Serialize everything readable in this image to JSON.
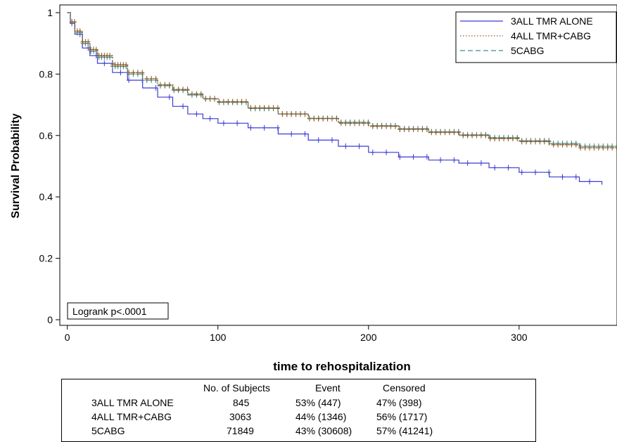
{
  "chart_data": {
    "type": "line",
    "xlabel": "time to rehospitalization",
    "ylabel": "Survival Probability",
    "xlim": [
      -5,
      365
    ],
    "ylim": [
      0,
      1
    ],
    "xticks": [
      0,
      100,
      200,
      300
    ],
    "yticks": [
      0,
      0.2,
      0.4,
      0.6,
      0.8,
      1
    ],
    "ytick_labels": [
      "0",
      "0.2",
      "0.4",
      "0.6",
      "0.8",
      "1"
    ],
    "grid": false,
    "legend_position": "top-right",
    "annotation": "Logrank p<.0001",
    "series": [
      {
        "name": "3ALL TMR ALONE",
        "style": "solid",
        "color": "#3b3bd6",
        "x": [
          0,
          2,
          5,
          10,
          15,
          20,
          30,
          40,
          50,
          60,
          70,
          80,
          90,
          100,
          120,
          140,
          160,
          180,
          200,
          220,
          240,
          260,
          280,
          300,
          320,
          340,
          355
        ],
        "y": [
          1.0,
          0.965,
          0.93,
          0.885,
          0.86,
          0.835,
          0.805,
          0.78,
          0.755,
          0.725,
          0.695,
          0.67,
          0.655,
          0.64,
          0.625,
          0.605,
          0.585,
          0.565,
          0.545,
          0.53,
          0.52,
          0.51,
          0.495,
          0.48,
          0.465,
          0.45,
          0.44
        ]
      },
      {
        "name": "4ALL TMR+CABG",
        "style": "dotted",
        "color": "#8a5a2a",
        "x": [
          0,
          2,
          5,
          10,
          15,
          20,
          30,
          40,
          50,
          60,
          70,
          80,
          90,
          100,
          120,
          140,
          160,
          180,
          200,
          220,
          240,
          260,
          280,
          300,
          320,
          340,
          365
        ],
        "y": [
          1.0,
          0.97,
          0.94,
          0.905,
          0.88,
          0.86,
          0.83,
          0.805,
          0.785,
          0.765,
          0.75,
          0.735,
          0.72,
          0.71,
          0.69,
          0.67,
          0.655,
          0.64,
          0.63,
          0.62,
          0.61,
          0.6,
          0.59,
          0.58,
          0.57,
          0.56,
          0.54
        ]
      },
      {
        "name": "5CABG",
        "style": "dashed",
        "color": "#3d8c8c",
        "x": [
          0,
          2,
          5,
          10,
          15,
          20,
          30,
          40,
          50,
          60,
          70,
          80,
          90,
          100,
          120,
          140,
          160,
          180,
          200,
          220,
          240,
          260,
          280,
          300,
          320,
          340,
          365
        ],
        "y": [
          1.0,
          0.97,
          0.935,
          0.9,
          0.875,
          0.855,
          0.825,
          0.8,
          0.78,
          0.762,
          0.747,
          0.732,
          0.719,
          0.708,
          0.688,
          0.67,
          0.656,
          0.643,
          0.632,
          0.622,
          0.612,
          0.602,
          0.593,
          0.583,
          0.574,
          0.565,
          0.553
        ]
      }
    ]
  },
  "table": {
    "headers": [
      "No. of Subjects",
      "Event",
      "Censored"
    ],
    "rows": [
      {
        "label": "3ALL TMR ALONE",
        "subjects": "845",
        "event": "53% (447)",
        "censored": "47% (398)"
      },
      {
        "label": "4ALL TMR+CABG",
        "subjects": "3063",
        "event": "44% (1346)",
        "censored": "56% (1717)"
      },
      {
        "label": "5CABG",
        "subjects": "71849",
        "event": "43% (30608)",
        "censored": "57% (41241)"
      }
    ]
  }
}
